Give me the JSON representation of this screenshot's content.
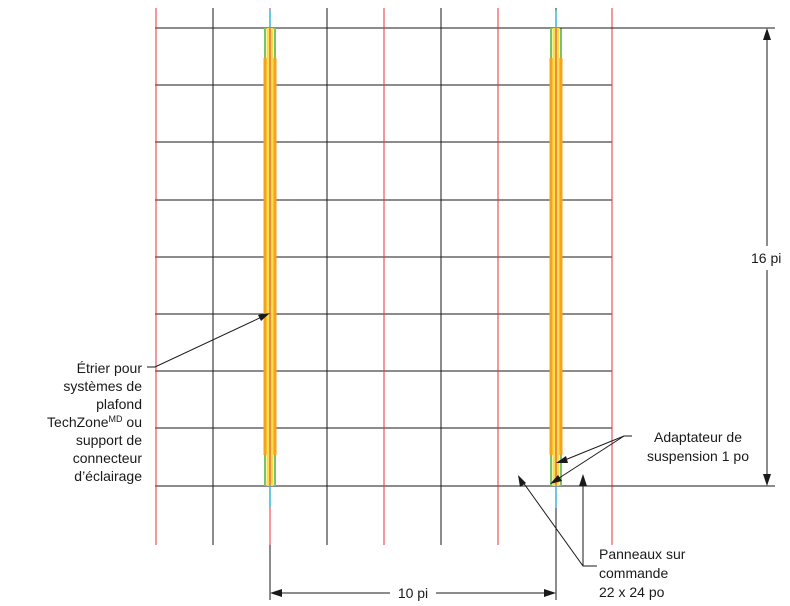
{
  "colors": {
    "grid": "#1a1a1a",
    "red_line": "#e8323c",
    "bracket_orange": "#f7a21b",
    "bracket_yellow": "#f6e04b",
    "bracket_green": "#7cc26a",
    "bracket_cyan": "#3fb4d4"
  },
  "dimensions": {
    "height_label": "16 pi",
    "width_label": "10 pi"
  },
  "callouts": {
    "bracket_lines": [
      "Étrier pour",
      "systèmes de",
      "plafond"
    ],
    "bracket_brand": "TechZone",
    "bracket_brand_sup": "MD",
    "bracket_brand_after": " ou",
    "bracket_tail_lines": [
      "support de",
      "connecteur",
      "d’éclairage"
    ],
    "adapter_lines": [
      "Adaptateur de",
      "suspension 1 po"
    ],
    "panels_lines": [
      "Panneaux sur",
      "commande",
      "22  x 24 po"
    ]
  }
}
